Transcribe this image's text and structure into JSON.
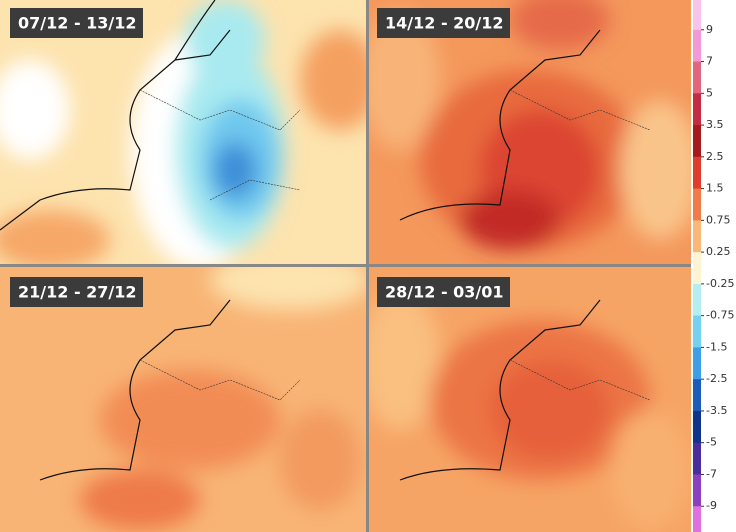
{
  "panels": [
    {
      "label": "07/12 - 13/12"
    },
    {
      "label": "14/12 - 20/12"
    },
    {
      "label": "21/12 - 27/12"
    },
    {
      "label": "28/12 - 03/01"
    }
  ],
  "legend": {
    "ticks": [
      9,
      7,
      5,
      3.5,
      2.5,
      1.5,
      0.75,
      0.25,
      -0.25,
      -0.75,
      -1.5,
      -2.5,
      -3.5,
      -5,
      -7,
      -9
    ],
    "colors": [
      "#f9c4ec",
      "#f39ad6",
      "#e2667e",
      "#c42c44",
      "#a41a1e",
      "#de3c2c",
      "#f07a48",
      "#f9b878",
      "#fff4d2",
      "#b4eef0",
      "#76d0f0",
      "#3e9ee6",
      "#1e5cbc",
      "#10348a",
      "#4a2e9c",
      "#8c40c0",
      "#e070e0"
    ]
  }
}
